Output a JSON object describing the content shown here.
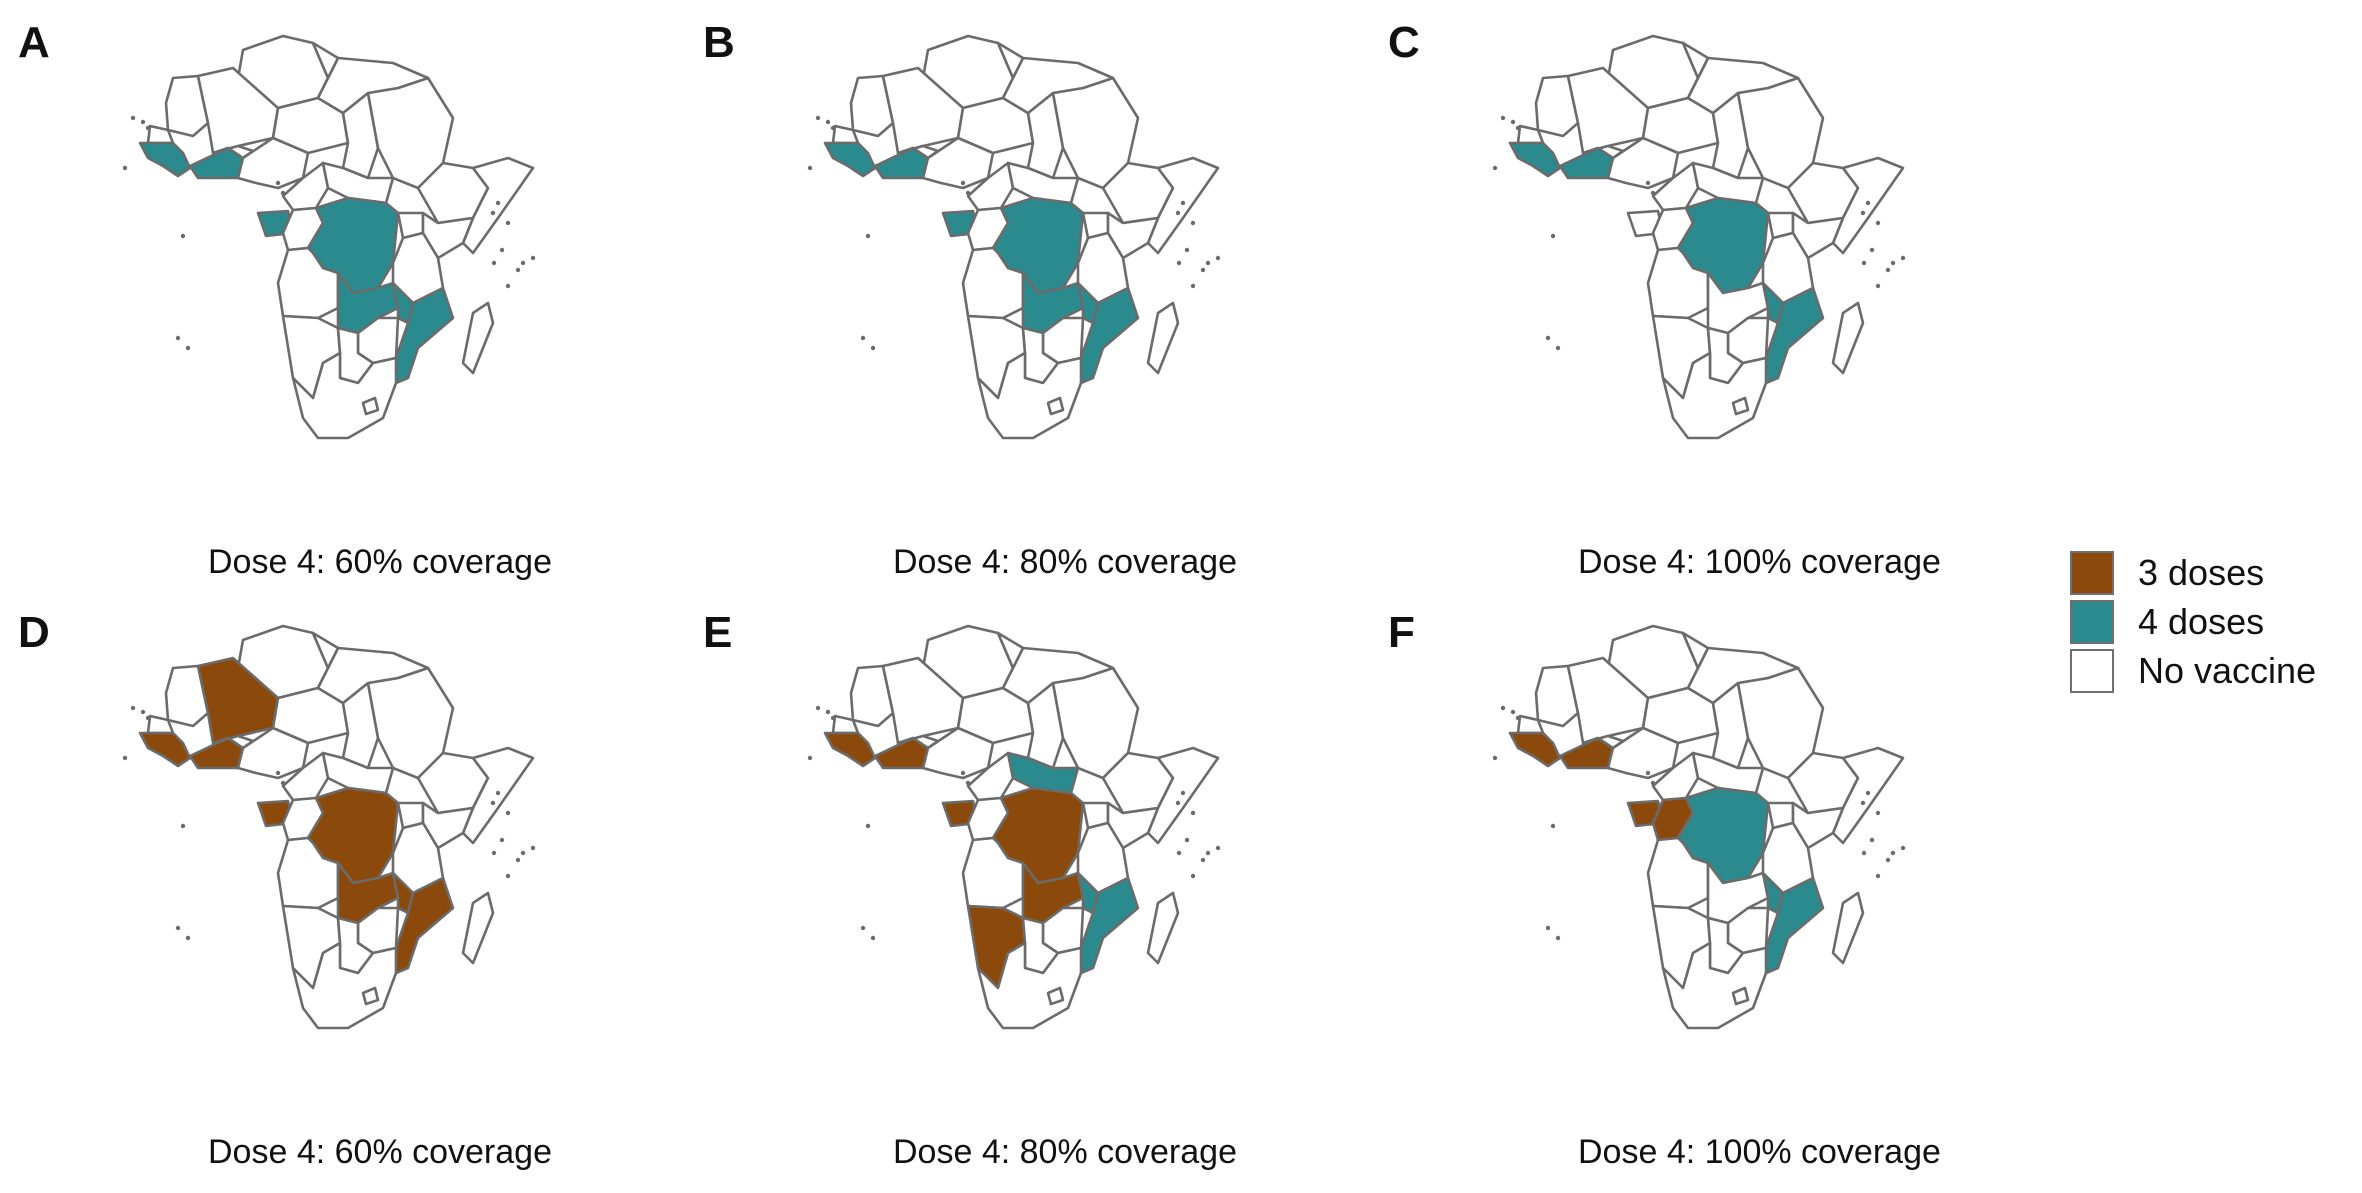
{
  "colors": {
    "three_doses": "#8b4a0b",
    "four_doses": "#2b8a8e",
    "no_vaccine": "#ffffff",
    "border": "#6b6b6b"
  },
  "panels": [
    {
      "letter": "A",
      "caption": "Dose 4: 60% coverage",
      "fills": {
        "west_coast": "four",
        "ghana": "four",
        "eq_guinea": "four",
        "drc": "four",
        "zambia": "four",
        "malawi": "four",
        "mozambique": "four",
        "mali": "none",
        "angola": "none",
        "namibia": "none",
        "car": "none",
        "congo": "none"
      }
    },
    {
      "letter": "B",
      "caption": "Dose 4: 80% coverage",
      "fills": {
        "west_coast": "four",
        "ghana": "four",
        "eq_guinea": "four",
        "drc": "four",
        "zambia": "four",
        "malawi": "four",
        "mozambique": "four",
        "mali": "none",
        "angola": "none",
        "namibia": "none",
        "car": "none",
        "congo": "none"
      }
    },
    {
      "letter": "C",
      "caption": "Dose 4: 100% coverage",
      "fills": {
        "west_coast": "four",
        "ghana": "four",
        "eq_guinea": "none",
        "drc": "four",
        "zambia": "none",
        "malawi": "four",
        "mozambique": "four",
        "mali": "none",
        "angola": "none",
        "namibia": "none",
        "car": "none",
        "congo": "none"
      }
    },
    {
      "letter": "D",
      "caption": "Dose 4: 60% coverage",
      "fills": {
        "west_coast": "three",
        "ghana": "three",
        "eq_guinea": "three",
        "drc": "three",
        "zambia": "three",
        "malawi": "three",
        "mozambique": "three",
        "mali": "three",
        "angola": "none",
        "namibia": "none",
        "car": "none",
        "congo": "none"
      }
    },
    {
      "letter": "E",
      "caption": "Dose 4: 80% coverage",
      "fills": {
        "west_coast": "three",
        "ghana": "three",
        "eq_guinea": "three",
        "drc": "three",
        "zambia": "three",
        "malawi": "four",
        "mozambique": "four",
        "mali": "none",
        "angola": "none",
        "namibia": "three",
        "car": "four",
        "congo": "none"
      }
    },
    {
      "letter": "F",
      "caption": "Dose 4: 100% coverage",
      "fills": {
        "west_coast": "three",
        "ghana": "three",
        "eq_guinea": "three",
        "drc": "four",
        "zambia": "none",
        "malawi": "four",
        "mozambique": "four",
        "mali": "none",
        "angola": "none",
        "namibia": "none",
        "car": "none",
        "congo": "three"
      }
    }
  ],
  "legend": [
    {
      "key": "three",
      "label": "3 doses"
    },
    {
      "key": "four",
      "label": "4 doses"
    },
    {
      "key": "none",
      "label": "No vaccine"
    }
  ]
}
